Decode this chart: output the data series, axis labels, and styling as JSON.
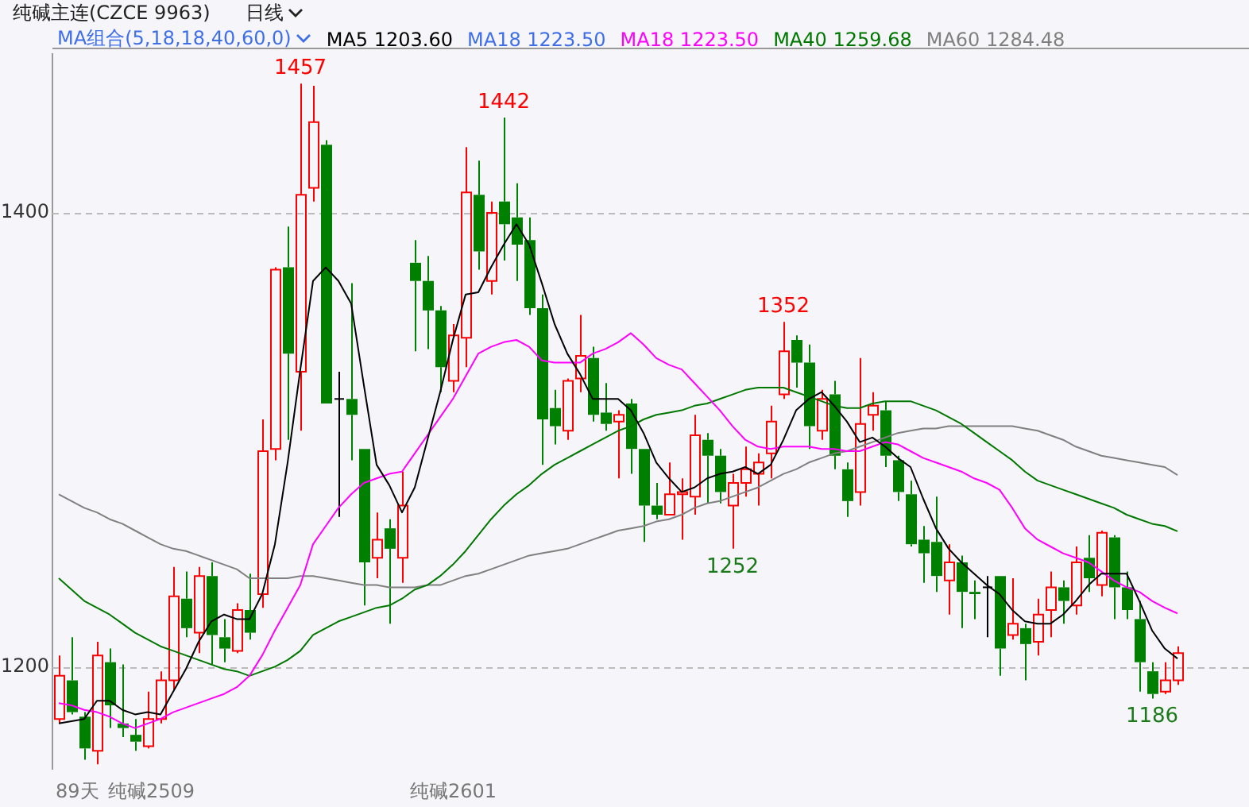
{
  "chart_data": {
    "type": "candlestick",
    "title": "纯碱主连(CZCE 9963)",
    "subtitle": "日线",
    "legend_title": "MA组合(5,18,18,40,60,0)",
    "categories": [
      null,
      null,
      null,
      null,
      null,
      null,
      null,
      null,
      null,
      null,
      null,
      null,
      null,
      null,
      null,
      null,
      null,
      null,
      null,
      null,
      null,
      null,
      null,
      null,
      null,
      null,
      null,
      null,
      null,
      null,
      null,
      null,
      null,
      null,
      null,
      null,
      null,
      null,
      null,
      null,
      null,
      null,
      null,
      null,
      null,
      null,
      null,
      null,
      null,
      null,
      null,
      null,
      null,
      null,
      null,
      null,
      null,
      null,
      null,
      null,
      null,
      null,
      null,
      null,
      null,
      null,
      null,
      null,
      null,
      null,
      null,
      null,
      null,
      null,
      null,
      null,
      null,
      null,
      null,
      null,
      null,
      null,
      null,
      null,
      null,
      null,
      null,
      null,
      null
    ],
    "ohlc": [
      [
        1177,
        1205,
        1175,
        1196
      ],
      [
        1194,
        1213,
        1179,
        1180
      ],
      [
        1178,
        1180,
        1159,
        1164
      ],
      [
        1163,
        1211,
        1157,
        1205
      ],
      [
        1202,
        1208,
        1173,
        1183
      ],
      [
        1175,
        1201,
        1169,
        1173
      ],
      [
        1170,
        1177,
        1163,
        1167
      ],
      [
        1165,
        1189,
        1164,
        1177
      ],
      [
        1177,
        1198,
        1175,
        1194
      ],
      [
        1194,
        1244,
        1190,
        1231
      ],
      [
        1230,
        1242,
        1213,
        1217
      ],
      [
        1215,
        1244,
        1206,
        1240
      ],
      [
        1240,
        1246,
        1201,
        1214
      ],
      [
        1213,
        1221,
        1202,
        1208
      ],
      [
        1207,
        1228,
        1206,
        1225
      ],
      [
        1225,
        1241,
        1212,
        1215
      ],
      [
        1232,
        1309,
        1226,
        1295
      ],
      [
        1296,
        1376,
        1291,
        1375
      ],
      [
        1376,
        1394,
        1300,
        1338
      ],
      [
        1330,
        1457,
        1304,
        1408
      ],
      [
        1411,
        1456,
        1405,
        1440
      ],
      [
        1430,
        1432,
        1316,
        1316
      ],
      [
        1318,
        1330,
        1266,
        1318
      ],
      [
        1318,
        1369,
        1291,
        1311
      ],
      [
        1296,
        1296,
        1227,
        1246
      ],
      [
        1248,
        1268,
        1239,
        1256
      ],
      [
        1261,
        1265,
        1219,
        1252
      ],
      [
        1248,
        1286,
        1237,
        1271
      ],
      [
        1378,
        1388,
        1339,
        1370
      ],
      [
        1370,
        1381,
        1340,
        1357
      ],
      [
        1357,
        1359,
        1321,
        1332
      ],
      [
        1326,
        1351,
        1321,
        1346
      ],
      [
        1345,
        1429,
        1332,
        1409
      ],
      [
        1408,
        1423,
        1375,
        1383
      ],
      [
        1370,
        1405,
        1364,
        1400
      ],
      [
        1405,
        1442,
        1379,
        1395
      ],
      [
        1398,
        1413,
        1370,
        1386
      ],
      [
        1388,
        1398,
        1355,
        1358
      ],
      [
        1358,
        1364,
        1289,
        1309
      ],
      [
        1314,
        1322,
        1298,
        1306
      ],
      [
        1304,
        1327,
        1300,
        1326
      ],
      [
        1327,
        1355,
        1321,
        1337
      ],
      [
        1336,
        1341,
        1308,
        1311
      ],
      [
        1312,
        1325,
        1304,
        1307
      ],
      [
        1308,
        1313,
        1283,
        1311
      ],
      [
        1316,
        1318,
        1285,
        1296
      ],
      [
        1296,
        1296,
        1255,
        1271
      ],
      [
        1271,
        1281,
        1265,
        1267
      ],
      [
        1267,
        1290,
        1267,
        1276
      ],
      [
        1276,
        1283,
        1256,
        1277
      ],
      [
        1275,
        1311,
        1267,
        1302
      ],
      [
        1300,
        1303,
        1272,
        1293
      ],
      [
        1293,
        1296,
        1272,
        1277
      ],
      [
        1271,
        1285,
        1252,
        1281
      ],
      [
        1281,
        1297,
        1275,
        1287
      ],
      [
        1285,
        1294,
        1271,
        1290
      ],
      [
        1294,
        1315,
        1283,
        1308
      ],
      [
        1320,
        1352,
        1318,
        1339
      ],
      [
        1344,
        1346,
        1323,
        1334
      ],
      [
        1334,
        1342,
        1296,
        1306
      ],
      [
        1304,
        1322,
        1300,
        1318
      ],
      [
        1320,
        1326,
        1287,
        1293
      ],
      [
        1287,
        1290,
        1266,
        1273
      ],
      [
        1277,
        1336,
        1271,
        1307
      ],
      [
        1311,
        1321,
        1304,
        1315
      ],
      [
        1313,
        1317,
        1288,
        1293
      ],
      [
        1291,
        1293,
        1273,
        1277
      ],
      [
        1276,
        1282,
        1253,
        1254
      ],
      [
        1256,
        1262,
        1237,
        1250
      ],
      [
        1255,
        1275,
        1233,
        1240
      ],
      [
        1238,
        1254,
        1223,
        1246
      ],
      [
        1246,
        1249,
        1217,
        1233
      ],
      [
        1233,
        1238,
        1221,
        1232
      ],
      [
        1235,
        1240,
        1213,
        1235
      ],
      [
        1240,
        1240,
        1196,
        1208
      ],
      [
        1214,
        1239,
        1212,
        1219
      ],
      [
        1217,
        1219,
        1194,
        1210
      ],
      [
        1211,
        1230,
        1205,
        1223
      ],
      [
        1225,
        1242,
        1213,
        1235
      ],
      [
        1235,
        1238,
        1219,
        1229
      ],
      [
        1227,
        1253,
        1223,
        1246
      ],
      [
        1248,
        1258,
        1233,
        1239
      ],
      [
        1236,
        1260,
        1231,
        1259
      ],
      [
        1257,
        1258,
        1221,
        1235
      ],
      [
        1235,
        1242,
        1221,
        1225
      ],
      [
        1221,
        1229,
        1189,
        1202
      ],
      [
        1198,
        1202,
        1186,
        1188
      ],
      [
        1189,
        1202,
        1188,
        1194
      ],
      [
        1194,
        1209,
        1192,
        1206
      ]
    ],
    "colors": [
      "#ff0000",
      "#008000",
      "#008000",
      "#ff0000",
      "#008000",
      "#008000",
      "#008000",
      "#ff0000",
      "#ff0000",
      "#ff0000",
      "#008000",
      "#ff0000",
      "#008000",
      "#008000",
      "#ff0000",
      "#008000",
      "#ff0000",
      "#ff0000",
      "#008000",
      "#ff0000",
      "#ff0000",
      "#008000",
      "#000000",
      "#008000",
      "#008000",
      "#ff0000",
      "#008000",
      "#ff0000",
      "#008000",
      "#008000",
      "#008000",
      "#ff0000",
      "#ff0000",
      "#008000",
      "#ff0000",
      "#008000",
      "#008000",
      "#008000",
      "#008000",
      "#008000",
      "#ff0000",
      "#ff0000",
      "#008000",
      "#008000",
      "#ff0000",
      "#008000",
      "#008000",
      "#008000",
      "#ff0000",
      "#ff0000",
      "#ff0000",
      "#008000",
      "#008000",
      "#ff0000",
      "#ff0000",
      "#ff0000",
      "#ff0000",
      "#ff0000",
      "#008000",
      "#008000",
      "#ff0000",
      "#008000",
      "#008000",
      "#ff0000",
      "#ff0000",
      "#008000",
      "#008000",
      "#008000",
      "#008000",
      "#008000",
      "#ff0000",
      "#008000",
      "#008000",
      "#000000",
      "#008000",
      "#ff0000",
      "#008000",
      "#ff0000",
      "#ff0000",
      "#008000",
      "#ff0000",
      "#008000",
      "#ff0000",
      "#008000",
      "#008000",
      "#008000",
      "#008000",
      "#ff0000",
      "#ff0000"
    ],
    "series": [
      {
        "name": "MA5 1203.60",
        "type": "line",
        "color": "#000000",
        "values": [
          1175,
          1176,
          1177,
          1185,
          1185,
          1181,
          1179,
          1180,
          1179,
          1189,
          1199,
          1211,
          1220,
          1223,
          1221,
          1221,
          1232,
          1254,
          1290,
          1331,
          1370,
          1376,
          1370,
          1360,
          1324,
          1289,
          1280,
          1268,
          1279,
          1300,
          1321,
          1344,
          1364,
          1365,
          1376,
          1386,
          1395,
          1386,
          1369,
          1351,
          1338,
          1329,
          1318,
          1318,
          1318,
          1313,
          1303,
          1290,
          1283,
          1277,
          1279,
          1283,
          1285,
          1286,
          1288,
          1285,
          1289,
          1300,
          1313,
          1318,
          1321,
          1315,
          1308,
          1299,
          1301,
          1297,
          1292,
          1288,
          1274,
          1261,
          1252,
          1246,
          1241,
          1236,
          1232,
          1225,
          1220,
          1219,
          1219,
          1223,
          1229,
          1236,
          1241,
          1241,
          1241,
          1229,
          1216,
          1208,
          1203.6
        ]
      },
      {
        "name": "MA18 1223.50",
        "type": "line",
        "color": "#3f6fe8",
        "values": [
          null,
          null,
          null,
          null,
          null,
          null,
          null,
          null,
          null,
          null,
          null,
          null,
          null,
          null,
          null,
          null,
          null,
          null,
          null,
          null,
          null,
          null,
          null,
          null,
          null,
          null,
          null,
          null,
          null,
          null,
          null,
          null,
          null,
          null,
          null,
          null,
          null,
          null,
          null,
          null,
          null,
          null,
          null,
          null,
          null,
          null,
          null,
          null,
          null,
          null,
          null,
          null,
          null,
          null,
          null,
          null,
          null,
          null,
          null,
          null,
          null,
          null,
          null,
          null,
          null,
          null,
          null,
          null,
          null,
          null,
          null,
          null,
          null,
          null,
          null,
          null,
          null,
          null,
          null,
          null,
          null,
          null,
          null,
          null,
          null,
          null,
          null,
          null,
          null
        ]
      },
      {
        "name": "MA18 1223.50",
        "type": "line",
        "color": "#ff00ff",
        "values": [
          1184,
          1183,
          1181,
          1180,
          1178,
          1175,
          1173,
          1175,
          1177,
          1180,
          1182,
          1184,
          1186,
          1188,
          1191,
          1196,
          1205,
          1216,
          1226,
          1236,
          1254,
          1262,
          1270,
          1276,
          1281,
          1283,
          1285,
          1286,
          1294,
          1302,
          1310,
          1318,
          1328,
          1338,
          1341,
          1343,
          1344,
          1341,
          1335,
          1334,
          1334,
          1334,
          1338,
          1340,
          1343,
          1347,
          1342,
          1336,
          1333,
          1331,
          1325,
          1319,
          1313,
          1306,
          1300,
          1297,
          1296,
          1297,
          1297,
          1297,
          1296,
          1296,
          1295,
          1295,
          1297,
          1299,
          1298,
          1295,
          1292,
          1290,
          1288,
          1286,
          1283,
          1281,
          1278,
          1270,
          1261,
          1256,
          1253,
          1250,
          1248,
          1246,
          1242,
          1238,
          1235,
          1233,
          1229,
          1226,
          1223.5
        ]
      },
      {
        "name": "MA40 1259.68",
        "type": "line",
        "color": "#007800",
        "values": [
          1239,
          1234,
          1229,
          1226,
          1223,
          1219,
          1215,
          1212,
          1209,
          1207,
          1205,
          1203,
          1201,
          1199,
          1198,
          1196,
          1198,
          1200,
          1203,
          1207,
          1214,
          1217,
          1220,
          1222,
          1224,
          1226,
          1227,
          1230,
          1234,
          1236,
          1240,
          1245,
          1251,
          1258,
          1265,
          1271,
          1276,
          1280,
          1285,
          1289,
          1292,
          1295,
          1298,
          1301,
          1304,
          1306,
          1309,
          1311,
          1312,
          1313,
          1315,
          1316,
          1318,
          1320,
          1322,
          1323,
          1323,
          1323,
          1321,
          1319,
          1317,
          1315,
          1314,
          1314,
          1316,
          1317,
          1317,
          1317,
          1315,
          1313,
          1310,
          1307,
          1303,
          1299,
          1295,
          1291,
          1286,
          1282,
          1280,
          1278,
          1276,
          1274,
          1272,
          1270,
          1267,
          1265,
          1263,
          1262,
          1259.68
        ]
      },
      {
        "name": "MA60 1284.48",
        "type": "line",
        "color": "#808080",
        "values": [
          1276,
          1273,
          1270,
          1268,
          1265,
          1263,
          1260,
          1257,
          1254,
          1252,
          1251,
          1249,
          1247,
          1245,
          1243,
          1239,
          1239,
          1239,
          1239,
          1240,
          1240,
          1239,
          1238,
          1237,
          1236,
          1236,
          1235,
          1235,
          1235,
          1236,
          1236,
          1238,
          1240,
          1241,
          1243,
          1245,
          1247,
          1249,
          1250,
          1251,
          1252,
          1254,
          1256,
          1258,
          1260,
          1261,
          1262,
          1264,
          1265,
          1267,
          1270,
          1272,
          1273,
          1275,
          1277,
          1279,
          1282,
          1285,
          1287,
          1290,
          1292,
          1294,
          1295,
          1297,
          1299,
          1301,
          1303,
          1304,
          1305,
          1305,
          1306,
          1306,
          1306,
          1306,
          1306,
          1306,
          1305,
          1304,
          1302,
          1300,
          1297,
          1295,
          1293,
          1292,
          1291,
          1290,
          1289,
          1288,
          1284.48
        ]
      }
    ],
    "annotations": [
      {
        "text": "1457",
        "y": 1457
      },
      {
        "text": "1442",
        "y": 1442
      },
      {
        "text": "1352",
        "y": 1352
      },
      {
        "text": "1252",
        "y": 1252
      },
      {
        "text": "1186",
        "y": 1186
      },
      "89天",
      "纯碱2509",
      "纯碱2601"
    ],
    "ylim": [
      1155,
      1470
    ],
    "yticks": [
      1200,
      1400
    ],
    "grid": "y",
    "legend": "top",
    "tick_labels": "y",
    "marker": "none",
    "line_style": "solid"
  }
}
